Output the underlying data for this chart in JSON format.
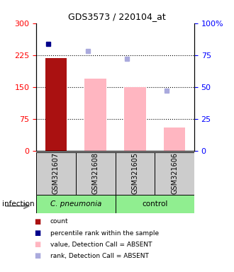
{
  "title": "GDS3573 / 220104_at",
  "samples": [
    "GSM321607",
    "GSM321608",
    "GSM321605",
    "GSM321606"
  ],
  "bar_values": [
    218,
    170,
    150,
    55
  ],
  "bar_colors": [
    "#AA1111",
    "#FFB6C1",
    "#FFB6C1",
    "#FFB6C1"
  ],
  "percentile_rank": [
    84,
    78,
    72,
    47
  ],
  "pct_colors": [
    "#00008B",
    "#AAAADD",
    "#AAAADD",
    "#AAAADD"
  ],
  "left_ylim": [
    0,
    300
  ],
  "right_ylim": [
    0,
    100
  ],
  "left_yticks": [
    0,
    75,
    150,
    225,
    300
  ],
  "right_yticks": [
    0,
    25,
    50,
    75,
    100
  ],
  "right_yticklabels": [
    "0",
    "25",
    "50",
    "75",
    "100%"
  ],
  "dotted_lines": [
    75,
    150,
    225
  ],
  "infection_label": "infection",
  "group1_label": "C. pneumonia",
  "group2_label": "control",
  "legend_colors": [
    "#AA1111",
    "#00008B",
    "#FFB6C1",
    "#AAAADD"
  ],
  "legend_labels": [
    "count",
    "percentile rank within the sample",
    "value, Detection Call = ABSENT",
    "rank, Detection Call = ABSENT"
  ]
}
